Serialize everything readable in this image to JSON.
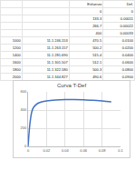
{
  "table": {
    "header": [
      "",
      "",
      "Esfuerzo",
      "Def."
    ],
    "rows": [
      [
        "",
        "",
        "0",
        "0"
      ],
      [
        "",
        "",
        "133.3",
        "0.00011"
      ],
      [
        "",
        "",
        "266.7",
        "0.00022"
      ],
      [
        "",
        "",
        "400",
        "0.00033"
      ],
      [
        "1000",
        "11.1 246.153",
        "470.5",
        "0.0100"
      ],
      [
        "1200",
        "11.1 263.157",
        "500.2",
        "0.0200"
      ],
      [
        "1400",
        "11.1 281.690",
        "515.4",
        "0.0400"
      ],
      [
        "1600",
        "11.1 301.507",
        "512.1",
        "0.0600"
      ],
      [
        "1800",
        "11.1 322.580",
        "500.3",
        "0.0800"
      ],
      [
        "2000",
        "11.1 344.827",
        "490.6",
        "0.0900"
      ]
    ]
  },
  "chart_data": {
    "type": "line",
    "title": "Curva T-Def",
    "x": [
      0,
      0.002,
      0.004,
      0.006,
      0.01,
      0.015,
      0.02,
      0.03,
      0.04,
      0.05,
      0.06,
      0.07,
      0.08,
      0.09
    ],
    "values": [
      0,
      250,
      380,
      430,
      470,
      490,
      500,
      510,
      515,
      515,
      512,
      508,
      500,
      490
    ],
    "color": "#4472c4",
    "xlim": [
      0,
      0.1
    ],
    "xticks": [
      0,
      0.02,
      0.04,
      0.06,
      0.08,
      0.1
    ],
    "ylim": [
      0,
      600
    ],
    "yticks": [
      0,
      200,
      400,
      600
    ],
    "grid": true
  }
}
